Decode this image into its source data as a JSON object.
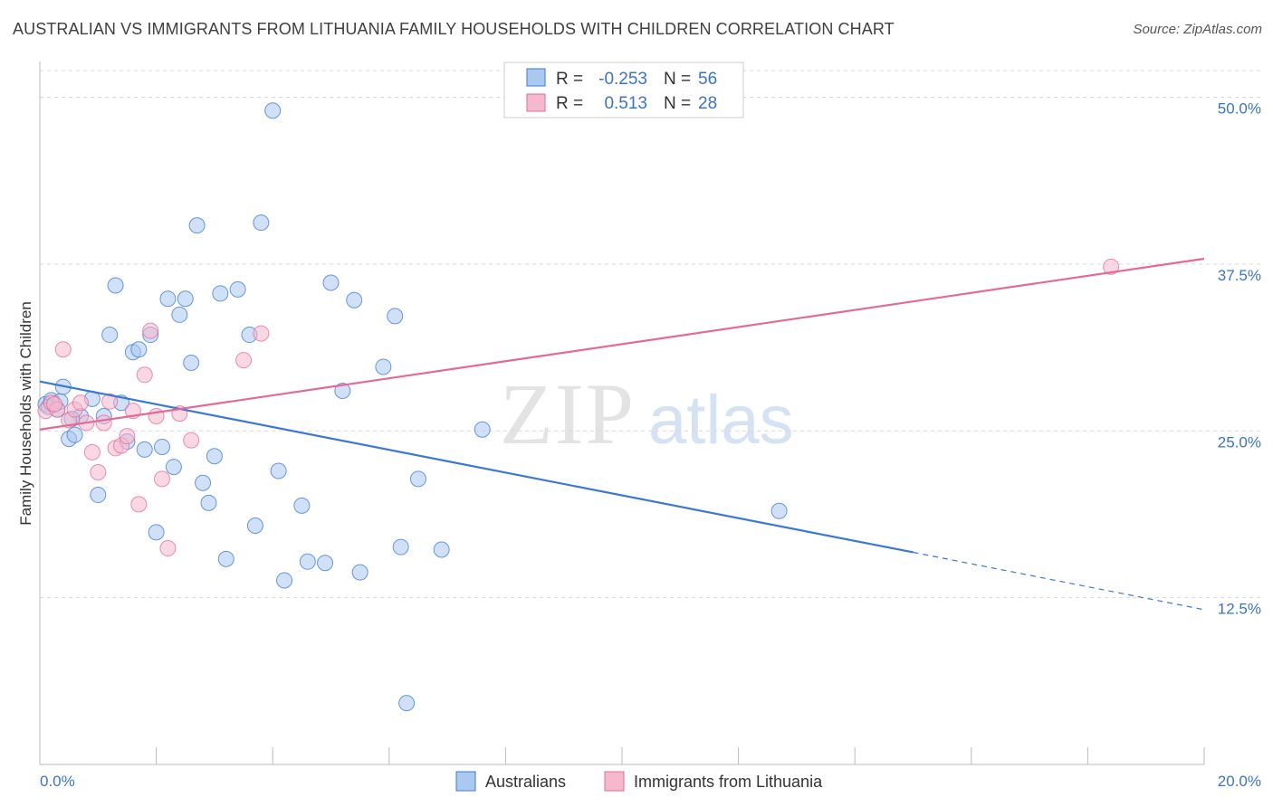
{
  "header": {
    "title": "AUSTRALIAN VS IMMIGRANTS FROM LITHUANIA FAMILY HOUSEHOLDS WITH CHILDREN CORRELATION CHART",
    "source": "Source: ZipAtlas.com"
  },
  "watermark": {
    "zip": "ZIP",
    "atlas": "atlas"
  },
  "colors": {
    "blue": "#3a78d4",
    "blue_fill": "#aac8f0",
    "pink": "#e36a96",
    "pink_fill": "#f5b8cc",
    "tick_label": "#3b74c6",
    "grid": "#d9d9d9"
  },
  "legend": {
    "rows": [
      {
        "r_label": "R =",
        "r_value": "-0.253",
        "n_label": "N =",
        "n_value": "56"
      },
      {
        "r_label": "R =",
        "r_value": "0.513",
        "n_label": "N =",
        "n_value": "28"
      }
    ]
  },
  "bottom_legend": {
    "items": [
      "Australians",
      "Immigrants from Lithuania"
    ]
  },
  "chart_data": {
    "type": "scatter",
    "title": "AUSTRALIAN VS IMMIGRANTS FROM LITHUANIA FAMILY HOUSEHOLDS WITH CHILDREN CORRELATION CHART",
    "xlabel": "",
    "ylabel": "Family Households with Children",
    "xlim": [
      0,
      20
    ],
    "ylim": [
      0,
      52
    ],
    "x_tick_labels": [
      "0.0%",
      "20.0%"
    ],
    "y_ticks": [
      12.5,
      25.0,
      37.5,
      50.0
    ],
    "y_tick_labels": [
      "12.5%",
      "25.0%",
      "37.5%",
      "50.0%"
    ],
    "series": [
      {
        "name": "Australians",
        "R": -0.253,
        "N": 56,
        "trend": {
          "x0": 0,
          "y0": 28.7,
          "x1": 15.0,
          "y1": 15.9,
          "dash_to_x": 20.0,
          "dash_to_y": 11.6
        },
        "points": [
          [
            0.1,
            27.0
          ],
          [
            0.2,
            27.3
          ],
          [
            0.3,
            26.6
          ],
          [
            0.4,
            28.3
          ],
          [
            0.5,
            24.4
          ],
          [
            0.6,
            24.7
          ],
          [
            0.7,
            26.1
          ],
          [
            0.9,
            27.4
          ],
          [
            1.0,
            20.2
          ],
          [
            1.1,
            26.1
          ],
          [
            1.2,
            32.2
          ],
          [
            1.3,
            35.9
          ],
          [
            1.4,
            27.1
          ],
          [
            1.5,
            24.2
          ],
          [
            1.6,
            30.9
          ],
          [
            1.7,
            31.1
          ],
          [
            1.8,
            23.6
          ],
          [
            1.9,
            32.2
          ],
          [
            2.0,
            17.4
          ],
          [
            2.1,
            23.8
          ],
          [
            2.2,
            34.9
          ],
          [
            2.3,
            22.3
          ],
          [
            2.4,
            33.7
          ],
          [
            2.5,
            34.9
          ],
          [
            2.6,
            30.1
          ],
          [
            2.7,
            40.4
          ],
          [
            2.8,
            21.1
          ],
          [
            2.9,
            19.6
          ],
          [
            3.0,
            23.1
          ],
          [
            3.1,
            35.3
          ],
          [
            3.2,
            15.4
          ],
          [
            3.4,
            35.6
          ],
          [
            3.6,
            32.2
          ],
          [
            3.7,
            17.9
          ],
          [
            3.8,
            40.6
          ],
          [
            4.0,
            49.0
          ],
          [
            4.1,
            22.0
          ],
          [
            4.2,
            13.8
          ],
          [
            4.5,
            19.4
          ],
          [
            4.6,
            15.2
          ],
          [
            4.9,
            15.1
          ],
          [
            5.0,
            36.1
          ],
          [
            5.2,
            28.0
          ],
          [
            5.4,
            34.8
          ],
          [
            5.5,
            14.4
          ],
          [
            5.9,
            29.8
          ],
          [
            6.1,
            33.6
          ],
          [
            6.2,
            16.3
          ],
          [
            6.3,
            4.6
          ],
          [
            6.5,
            21.4
          ],
          [
            6.9,
            16.1
          ],
          [
            7.6,
            25.1
          ],
          [
            12.7,
            19.0
          ],
          [
            0.15,
            26.8
          ],
          [
            0.35,
            27.2
          ],
          [
            0.55,
            25.9
          ]
        ]
      },
      {
        "name": "Immigrants from Lithuania",
        "R": 0.513,
        "N": 28,
        "trend": {
          "x0": 0,
          "y0": 25.1,
          "x1": 20.0,
          "y1": 37.9
        },
        "points": [
          [
            0.1,
            26.5
          ],
          [
            0.2,
            27.1
          ],
          [
            0.3,
            26.6
          ],
          [
            0.4,
            31.1
          ],
          [
            0.5,
            25.8
          ],
          [
            0.6,
            26.6
          ],
          [
            0.7,
            27.1
          ],
          [
            0.8,
            25.6
          ],
          [
            0.9,
            23.4
          ],
          [
            1.0,
            21.9
          ],
          [
            1.1,
            25.6
          ],
          [
            1.2,
            27.2
          ],
          [
            1.3,
            23.7
          ],
          [
            1.4,
            23.9
          ],
          [
            1.5,
            24.6
          ],
          [
            1.6,
            26.5
          ],
          [
            1.7,
            19.5
          ],
          [
            1.8,
            29.2
          ],
          [
            1.9,
            32.5
          ],
          [
            2.0,
            26.1
          ],
          [
            2.1,
            21.4
          ],
          [
            2.2,
            16.2
          ],
          [
            2.4,
            26.3
          ],
          [
            2.6,
            24.3
          ],
          [
            3.5,
            30.3
          ],
          [
            3.8,
            32.3
          ],
          [
            18.4,
            37.3
          ],
          [
            0.25,
            27.0
          ]
        ]
      }
    ]
  }
}
